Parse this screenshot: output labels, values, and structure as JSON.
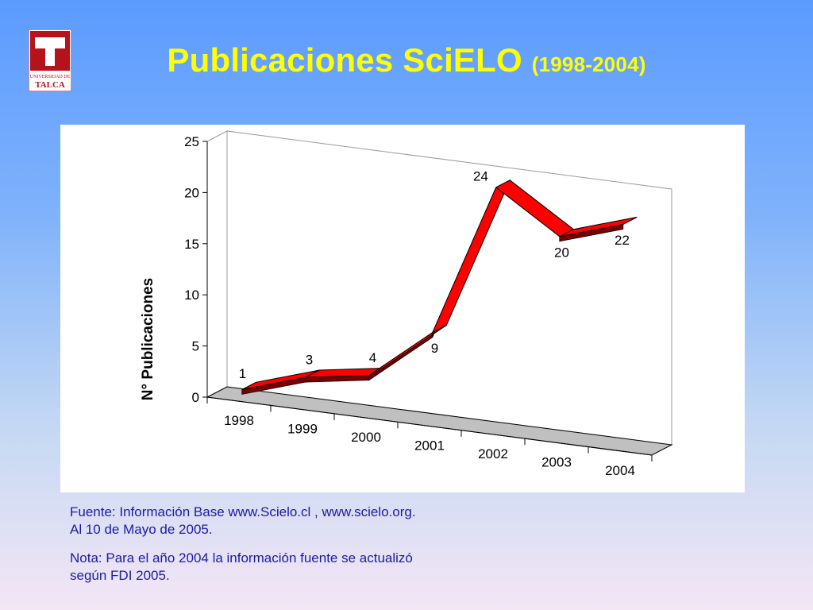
{
  "logo": {
    "line1": "UNIVERSIDAD DE",
    "line2": "TALCA",
    "colors": {
      "primary": "#b5121b",
      "frame": "#ffffff"
    }
  },
  "title": {
    "main": "Publicaciones SciELO",
    "sub": "(1998-2004)"
  },
  "chart_data": {
    "type": "line",
    "style": "3d-ribbon",
    "title": "",
    "xlabel": "",
    "ylabel": "N° Publicaciones",
    "categories": [
      "1998",
      "1999",
      "2000",
      "2001",
      "2002",
      "2003",
      "2004"
    ],
    "series": [
      {
        "values": [
          1,
          3,
          4,
          9,
          24,
          20,
          22
        ],
        "color": "#ff0000"
      }
    ],
    "data_labels": [
      "1",
      "3",
      "4",
      "9",
      "24",
      "20",
      "22"
    ],
    "ylim": [
      0,
      25
    ],
    "yticks": [
      "0",
      "5",
      "10",
      "15",
      "20",
      "25"
    ],
    "grid": false,
    "legend": "none"
  },
  "notes": {
    "source": "Fuente: Información Base www.Scielo.cl , www.scielo.org. Al 10 de Mayo de 2005.",
    "note": "Nota: Para el año 2004 la información fuente se actualizó según FDI 2005."
  }
}
